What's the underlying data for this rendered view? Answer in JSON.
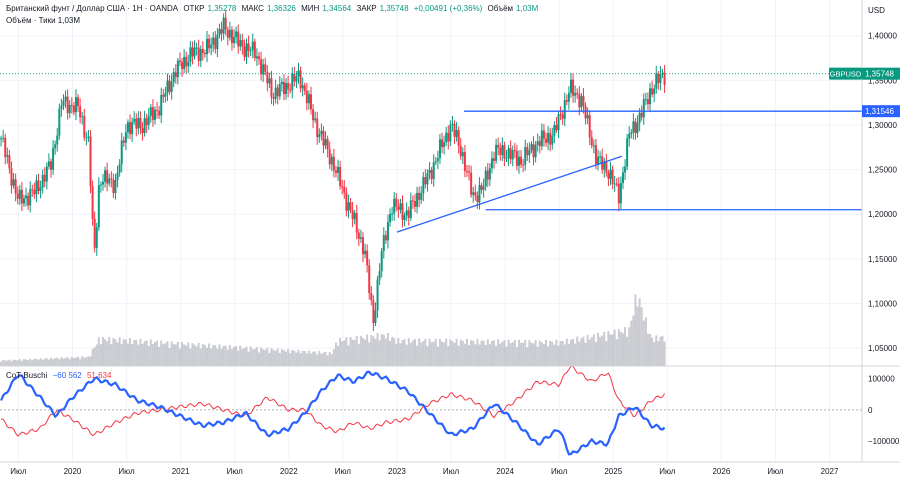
{
  "header": {
    "symbol_line": "Британский фунт / Доллар США · 1Н · OANDA",
    "open_label": "ОТКР",
    "open": "1,35278",
    "high_label": "МАКС",
    "high": "1,36326",
    "low_label": "МИН",
    "low": "1,34564",
    "close_label": "ЗАКР",
    "close": "1,35748",
    "change": "+0,00491 (+0,36%)",
    "volume_label": "Объём",
    "volume": "1,03M",
    "tick_volume_line": "Объём · Тики  1,03M",
    "currency": "USD"
  },
  "price_axis": {
    "ticks": [
      "1,40000",
      "1,35000",
      "1,30000",
      "1,25000",
      "1,20000",
      "1,15000",
      "1,10000",
      "1,05000"
    ],
    "tick_values": [
      1.4,
      1.35,
      1.3,
      1.25,
      1.2,
      1.15,
      1.1,
      1.05
    ],
    "range": [
      1.03,
      1.44
    ]
  },
  "badges": {
    "symbol": "GBPUSD",
    "last_price": "1,35748",
    "last_color": "#089981",
    "level_price": "1,31546",
    "level_color": "#2962ff"
  },
  "indicator": {
    "name": "CoT-Buschi",
    "blue_value": "−60 562",
    "red_value": "51 634",
    "blue_color": "#2962ff",
    "red_color": "#f23645",
    "ticks": [
      "100000",
      "0",
      "−100000"
    ],
    "tick_values": [
      100000,
      0,
      -100000
    ],
    "range": [
      -160000,
      140000
    ]
  },
  "time_axis": {
    "labels": [
      "Июл",
      "2020",
      "Июл",
      "2021",
      "Июл",
      "2022",
      "Июл",
      "2023",
      "Июл",
      "2024",
      "Июл",
      "2025",
      "Июл",
      "2026",
      "Июл",
      "2027"
    ],
    "label_dates": [
      2019.5,
      2020.0,
      2020.5,
      2021.0,
      2021.5,
      2022.0,
      2022.5,
      2023.0,
      2023.5,
      2024.0,
      2024.5,
      2025.0,
      2025.5,
      2026.0,
      2026.5,
      2027.0
    ],
    "range": [
      2019.33,
      2027.3
    ]
  },
  "chart_data": {
    "type": "candlestick",
    "title": "Британский фунт / Доллар США · 1Н · OANDA",
    "price_path": {
      "t": [
        2019.34,
        2019.5,
        2019.65,
        2019.8,
        2019.9,
        2020.05,
        2020.15,
        2020.2,
        2020.25,
        2020.4,
        2020.5,
        2020.65,
        2020.8,
        2020.95,
        2021.1,
        2021.25,
        2021.4,
        2021.55,
        2021.7,
        2021.85,
        2022.0,
        2022.1,
        2022.25,
        2022.4,
        2022.55,
        2022.7,
        2022.78,
        2022.85,
        2022.95,
        2023.1,
        2023.3,
        2023.5,
        2023.6,
        2023.7,
        2023.8,
        2023.9,
        2024.0,
        2024.15,
        2024.3,
        2024.45,
        2024.6,
        2024.7,
        2024.85,
        2024.95,
        2025.05,
        2025.15,
        2025.25,
        2025.35,
        2025.45,
        2025.49
      ],
      "price": [
        1.285,
        1.215,
        1.225,
        1.255,
        1.325,
        1.32,
        1.28,
        1.15,
        1.24,
        1.235,
        1.3,
        1.3,
        1.32,
        1.36,
        1.38,
        1.385,
        1.41,
        1.39,
        1.38,
        1.335,
        1.345,
        1.355,
        1.3,
        1.26,
        1.21,
        1.16,
        1.08,
        1.15,
        1.21,
        1.2,
        1.245,
        1.3,
        1.27,
        1.22,
        1.23,
        1.27,
        1.27,
        1.26,
        1.28,
        1.29,
        1.34,
        1.33,
        1.26,
        1.25,
        1.22,
        1.29,
        1.31,
        1.34,
        1.355,
        1.3575
      ]
    },
    "annotations": {
      "horizontal_levels": [
        1.31546,
        1.205
      ],
      "trendline": {
        "t": [
          2023.0,
          2025.08
        ],
        "price": [
          1.18,
          1.265
        ]
      },
      "last_price": 1.35748
    },
    "volume": {
      "t": [
        2019.34,
        2020.15,
        2020.25,
        2022.4,
        2022.45,
        2022.9,
        2023.0,
        2024.5,
        2024.8,
        2025.15,
        2025.22,
        2025.35,
        2025.49
      ],
      "value": [
        0.06,
        0.1,
        0.3,
        0.14,
        0.28,
        0.34,
        0.28,
        0.26,
        0.32,
        0.4,
        0.8,
        0.3,
        0.32
      ]
    },
    "cot": {
      "t": [
        2019.34,
        2019.5,
        2019.7,
        2019.85,
        2020.0,
        2020.2,
        2020.4,
        2020.6,
        2020.8,
        2021.0,
        2021.2,
        2021.4,
        2021.6,
        2021.8,
        2022.0,
        2022.15,
        2022.3,
        2022.45,
        2022.6,
        2022.75,
        2022.9,
        2023.1,
        2023.3,
        2023.5,
        2023.7,
        2023.9,
        2024.1,
        2024.3,
        2024.5,
        2024.6,
        2024.8,
        2024.95,
        2025.05,
        2025.2,
        2025.35,
        2025.49
      ],
      "blue": [
        30000,
        115000,
        40000,
        -20000,
        40000,
        100000,
        80000,
        30000,
        10000,
        -20000,
        -50000,
        -40000,
        -10000,
        -80000,
        -60000,
        -10000,
        60000,
        110000,
        90000,
        120000,
        100000,
        60000,
        -10000,
        -80000,
        -60000,
        20000,
        -40000,
        -110000,
        -60000,
        -145000,
        -100000,
        -110000,
        -20000,
        10000,
        -50000,
        -60562
      ],
      "red": [
        -30000,
        -80000,
        -60000,
        0,
        -30000,
        -80000,
        -40000,
        -10000,
        0,
        10000,
        20000,
        0,
        -20000,
        40000,
        0,
        0,
        -50000,
        -70000,
        -40000,
        -60000,
        -40000,
        -30000,
        20000,
        50000,
        30000,
        -20000,
        30000,
        90000,
        80000,
        140000,
        90000,
        120000,
        30000,
        -20000,
        30000,
        51634
      ]
    }
  }
}
